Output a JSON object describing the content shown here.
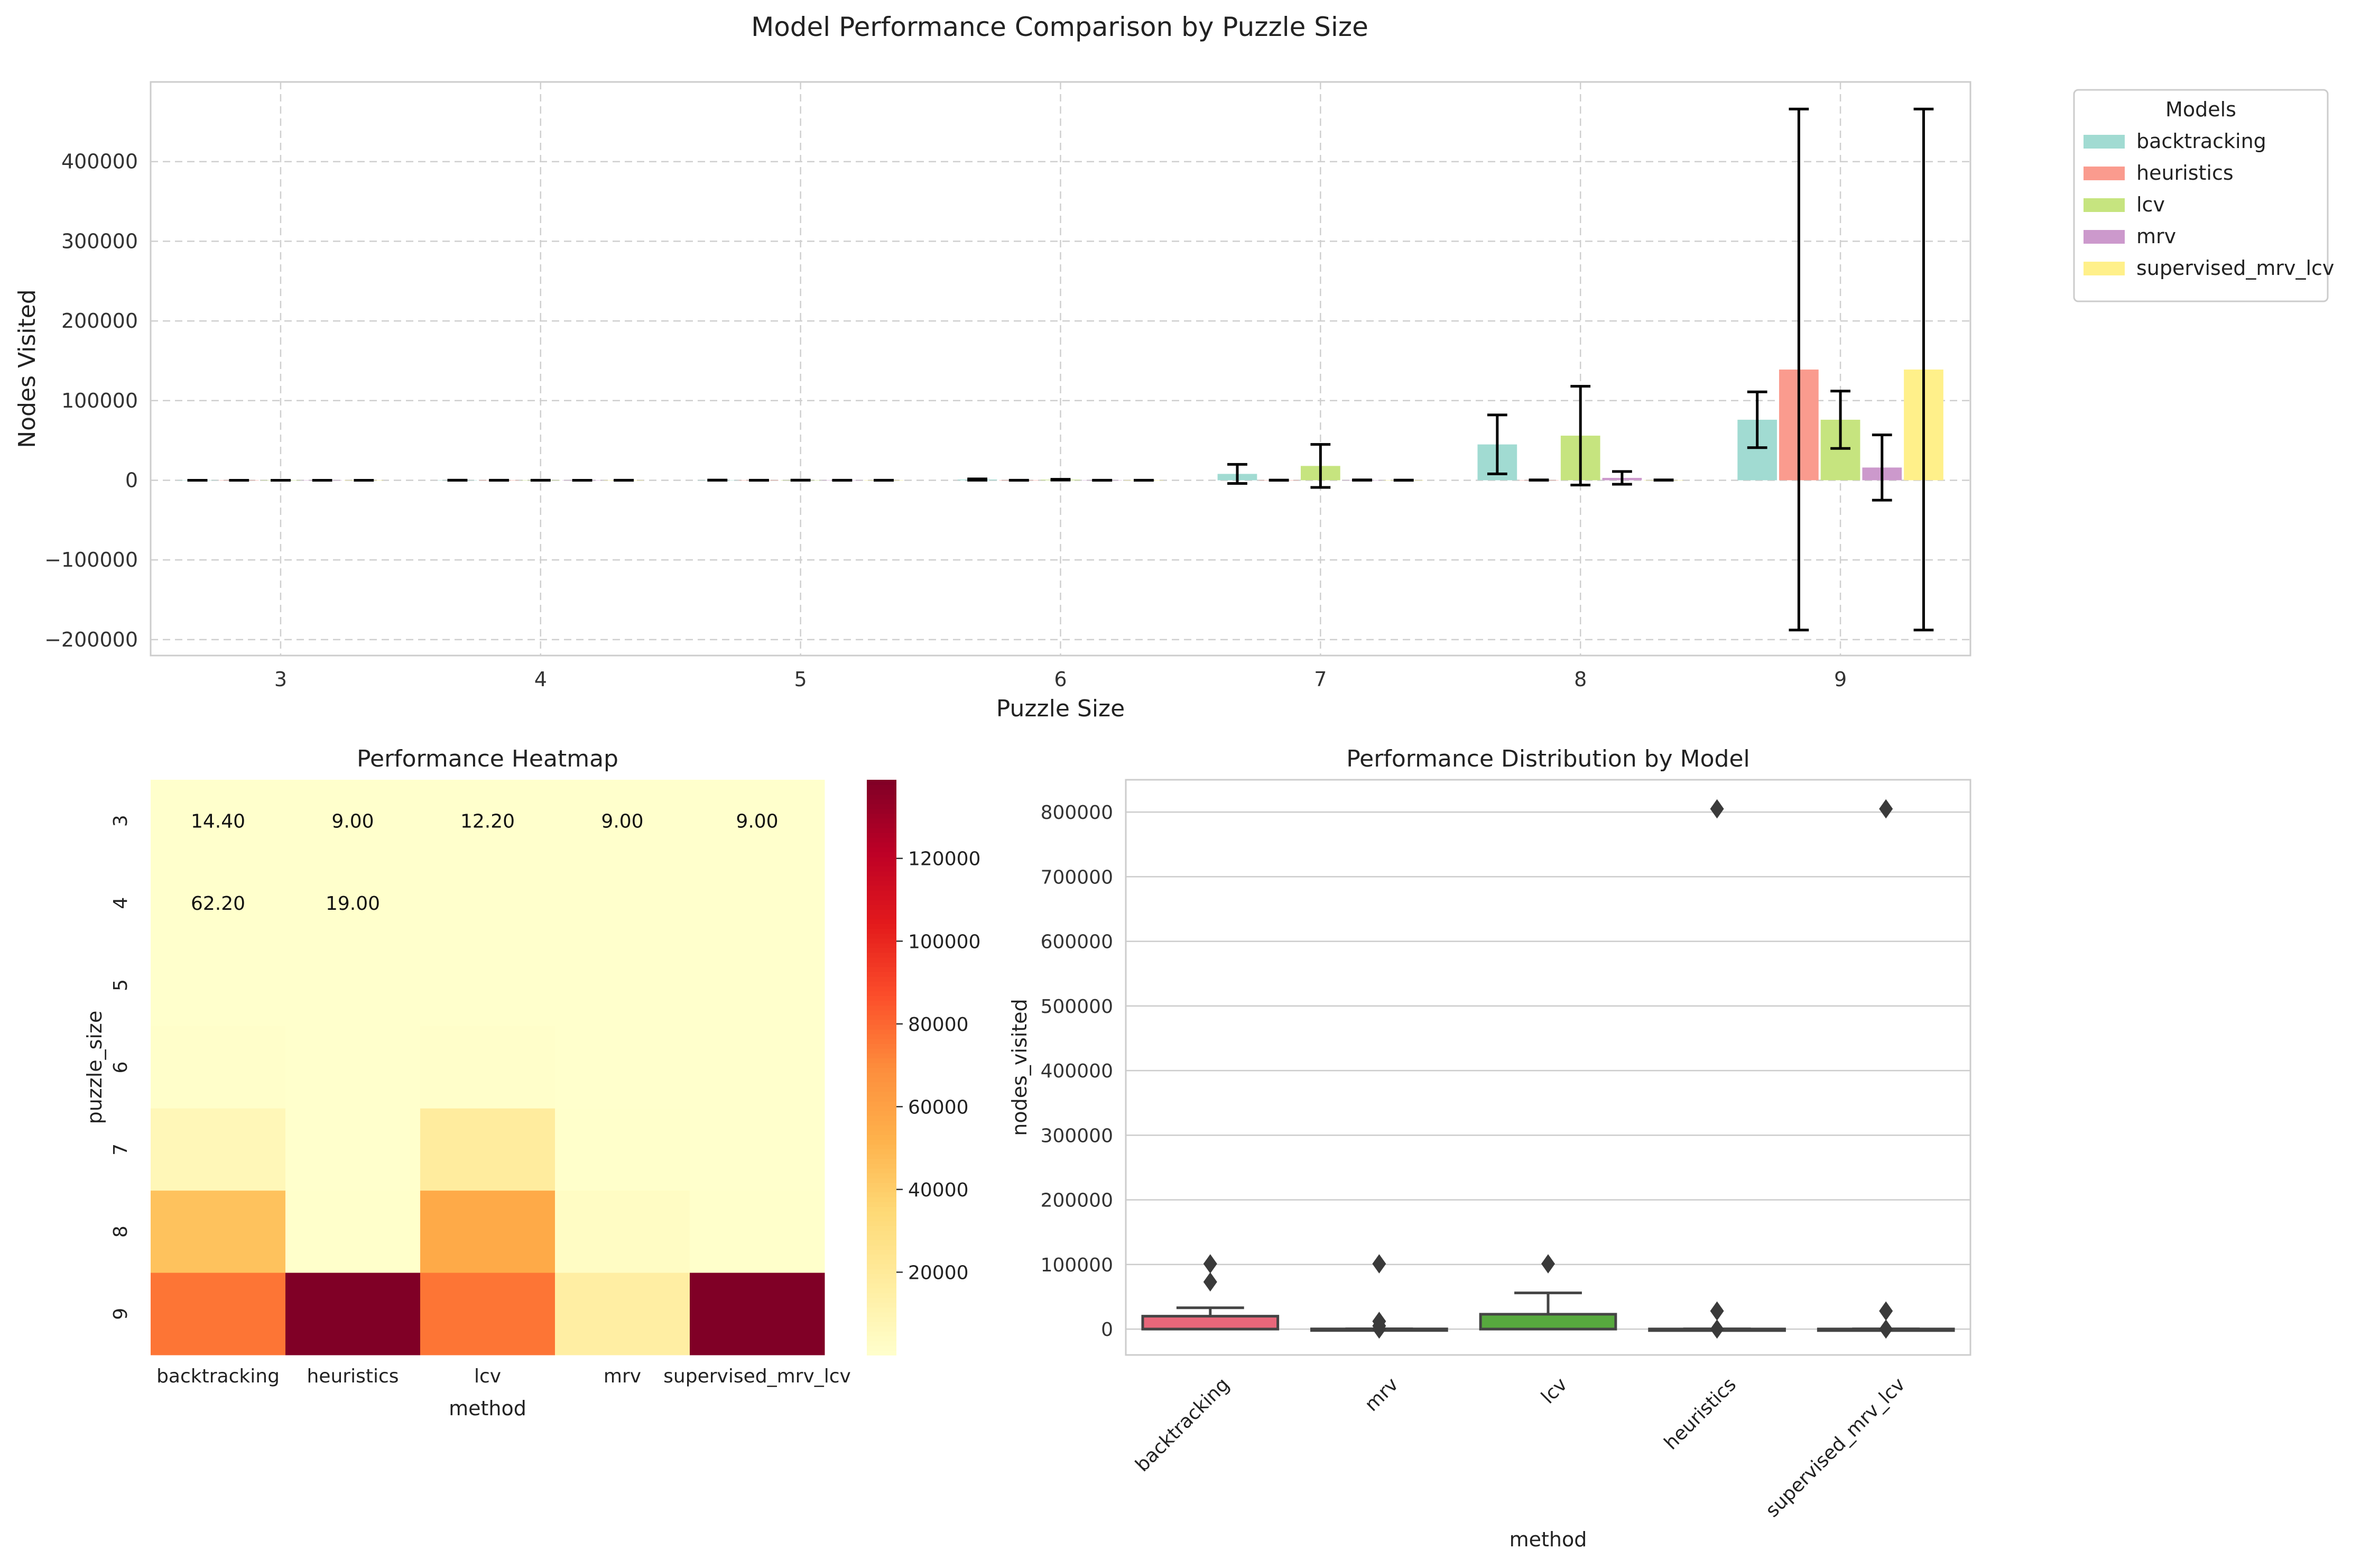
{
  "suptitle": "Model Performance Comparison by Puzzle Size",
  "colors": {
    "backtracking": "#a1dbd2",
    "heuristics": "#fa9b8e",
    "lcv": "#c6e47f",
    "mrv": "#cc99cc",
    "supervised_mrv_lcv": "#fff08a",
    "box_backtracking": "#e8677a",
    "box_lcv": "#57a93e",
    "box_other": "#444444"
  },
  "chart_data": [
    {
      "type": "bar",
      "title": "",
      "xlabel": "Puzzle Size",
      "ylabel": "Nodes Visited",
      "categories": [
        "3",
        "4",
        "5",
        "6",
        "7",
        "8",
        "9"
      ],
      "ylim": [
        -220000,
        500000
      ],
      "yticks": [
        -200000,
        -100000,
        0,
        100000,
        200000,
        300000,
        400000
      ],
      "ytick_labels": [
        "−200000",
        "−100000",
        "0",
        "100000",
        "200000",
        "300000",
        "400000"
      ],
      "grid": true,
      "legend": {
        "title": "Models",
        "placement": "outside right"
      },
      "series": [
        {
          "name": "backtracking",
          "values": [
            14.4,
            62.2,
            150,
            900,
            8000,
            45000,
            76000
          ],
          "errors": [
            5,
            30,
            100,
            800,
            12000,
            37000,
            35000
          ]
        },
        {
          "name": "heuristics",
          "values": [
            9,
            19,
            30,
            60,
            120,
            300,
            139000
          ],
          "errors": [
            0,
            5,
            10,
            40,
            100,
            200,
            327000
          ]
        },
        {
          "name": "lcv",
          "values": [
            12.2,
            40,
            100,
            700,
            18000,
            56000,
            76000
          ],
          "errors": [
            4,
            20,
            60,
            500,
            27000,
            62000,
            36000
          ]
        },
        {
          "name": "mrv",
          "values": [
            9,
            15,
            25,
            50,
            300,
            3000,
            16000
          ],
          "errors": [
            0,
            5,
            10,
            30,
            200,
            8000,
            41000
          ]
        },
        {
          "name": "supervised_mrv_lcv",
          "values": [
            9,
            19,
            30,
            60,
            120,
            300,
            139000
          ],
          "errors": [
            0,
            5,
            10,
            40,
            100,
            200,
            327000
          ]
        }
      ]
    },
    {
      "type": "heatmap",
      "title": "Performance Heatmap",
      "xlabel": "method",
      "ylabel": "puzzle_size",
      "x": [
        "backtracking",
        "heuristics",
        "lcv",
        "mrv",
        "supervised_mrv_lcv"
      ],
      "y": [
        "3",
        "4",
        "5",
        "6",
        "7",
        "8",
        "9"
      ],
      "values": [
        [
          14.4,
          9.0,
          12.2,
          9.0,
          9.0
        ],
        [
          62.2,
          19.0,
          40.0,
          15.0,
          19.0
        ],
        [
          150,
          30,
          100,
          25,
          30
        ],
        [
          900,
          60,
          700,
          50,
          60
        ],
        [
          8000,
          120,
          18000,
          300,
          120
        ],
        [
          45000,
          300,
          56000,
          3000,
          300
        ],
        [
          76000,
          139000,
          76000,
          16000,
          139000
        ]
      ],
      "annotations": [
        [
          "14.40",
          "9.00",
          "12.20",
          "9.00",
          "9.00"
        ],
        [
          "62.20",
          "19.00",
          "",
          "",
          ""
        ],
        [
          "",
          "",
          "",
          "",
          ""
        ],
        [
          "",
          "",
          "",
          "",
          ""
        ],
        [
          "",
          "",
          "",
          "",
          ""
        ],
        [
          "",
          "",
          "",
          "",
          ""
        ],
        [
          "",
          "",
          "",
          "",
          ""
        ]
      ],
      "colorbar": {
        "range": [
          0,
          139000
        ],
        "ticks": [
          "20000",
          "40000",
          "60000",
          "80000",
          "100000",
          "120000"
        ],
        "tick_values": [
          20000,
          40000,
          60000,
          80000,
          100000,
          120000
        ],
        "colormap": "YlOrRd"
      }
    },
    {
      "type": "box",
      "title": "Performance Distribution by Model",
      "xlabel": "method",
      "ylabel": "nodes_visited",
      "categories": [
        "backtracking",
        "mrv",
        "lcv",
        "heuristics",
        "supervised_mrv_lcv"
      ],
      "ylim": [
        -40000,
        850000
      ],
      "yticks": [
        0,
        100000,
        200000,
        300000,
        400000,
        500000,
        600000,
        700000,
        800000
      ],
      "grid": true,
      "boxes": [
        {
          "q1": 0,
          "median": 100,
          "q3": 20000,
          "whisker_low": 0,
          "whisker_high": 33000,
          "outliers": [
            73000,
            101000
          ]
        },
        {
          "q1": 0,
          "median": 10,
          "q3": 300,
          "whisker_low": 0,
          "whisker_high": 500,
          "outliers": [
            0,
            5000,
            12000,
            101000
          ]
        },
        {
          "q1": 0,
          "median": 100,
          "q3": 23000,
          "whisker_low": 0,
          "whisker_high": 56000,
          "outliers": [
            101000
          ]
        },
        {
          "q1": 0,
          "median": 10,
          "q3": 200,
          "whisker_low": 0,
          "whisker_high": 400,
          "outliers": [
            0,
            28000,
            805000
          ]
        },
        {
          "q1": 0,
          "median": 10,
          "q3": 200,
          "whisker_low": 0,
          "whisker_high": 400,
          "outliers": [
            0,
            28000,
            805000
          ]
        }
      ]
    }
  ]
}
